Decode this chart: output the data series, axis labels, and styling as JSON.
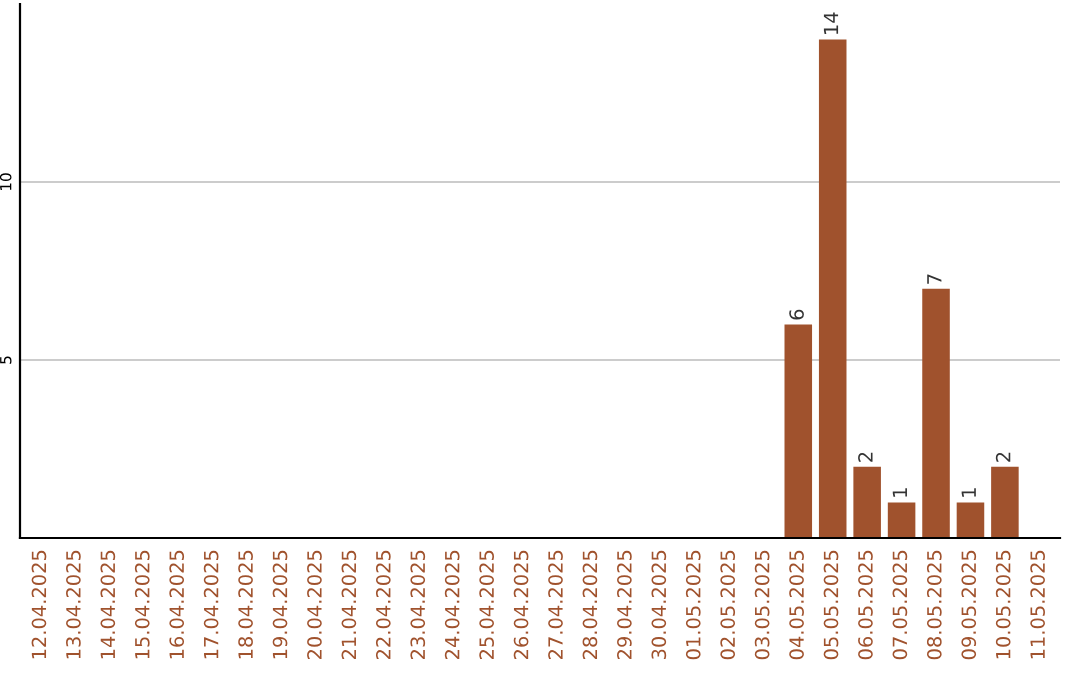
{
  "chart_data": {
    "type": "bar",
    "categories": [
      "12.04.2025",
      "13.04.2025",
      "14.04.2025",
      "15.04.2025",
      "16.04.2025",
      "17.04.2025",
      "18.04.2025",
      "19.04.2025",
      "20.04.2025",
      "21.04.2025",
      "22.04.2025",
      "23.04.2025",
      "24.04.2025",
      "25.04.2025",
      "26.04.2025",
      "27.04.2025",
      "28.04.2025",
      "29.04.2025",
      "30.04.2025",
      "01.05.2025",
      "02.05.2025",
      "03.05.2025",
      "04.05.2025",
      "05.05.2025",
      "06.05.2025",
      "07.05.2025",
      "08.05.2025",
      "09.05.2025",
      "10.05.2025",
      "11.05.2025"
    ],
    "values": [
      0,
      0,
      0,
      0,
      0,
      0,
      0,
      0,
      0,
      0,
      0,
      0,
      0,
      0,
      0,
      0,
      0,
      0,
      0,
      0,
      0,
      0,
      6,
      14,
      2,
      1,
      7,
      1,
      2,
      0
    ],
    "value_labels": [
      null,
      null,
      null,
      null,
      null,
      null,
      null,
      null,
      null,
      null,
      null,
      null,
      null,
      null,
      null,
      null,
      null,
      null,
      null,
      null,
      null,
      null,
      "6",
      "14",
      "2",
      "1",
      "7",
      "1",
      "2",
      null
    ],
    "color": "#a0522d",
    "ylim": [
      0,
      15
    ],
    "yticks": [
      5,
      10
    ],
    "grid": "y"
  }
}
